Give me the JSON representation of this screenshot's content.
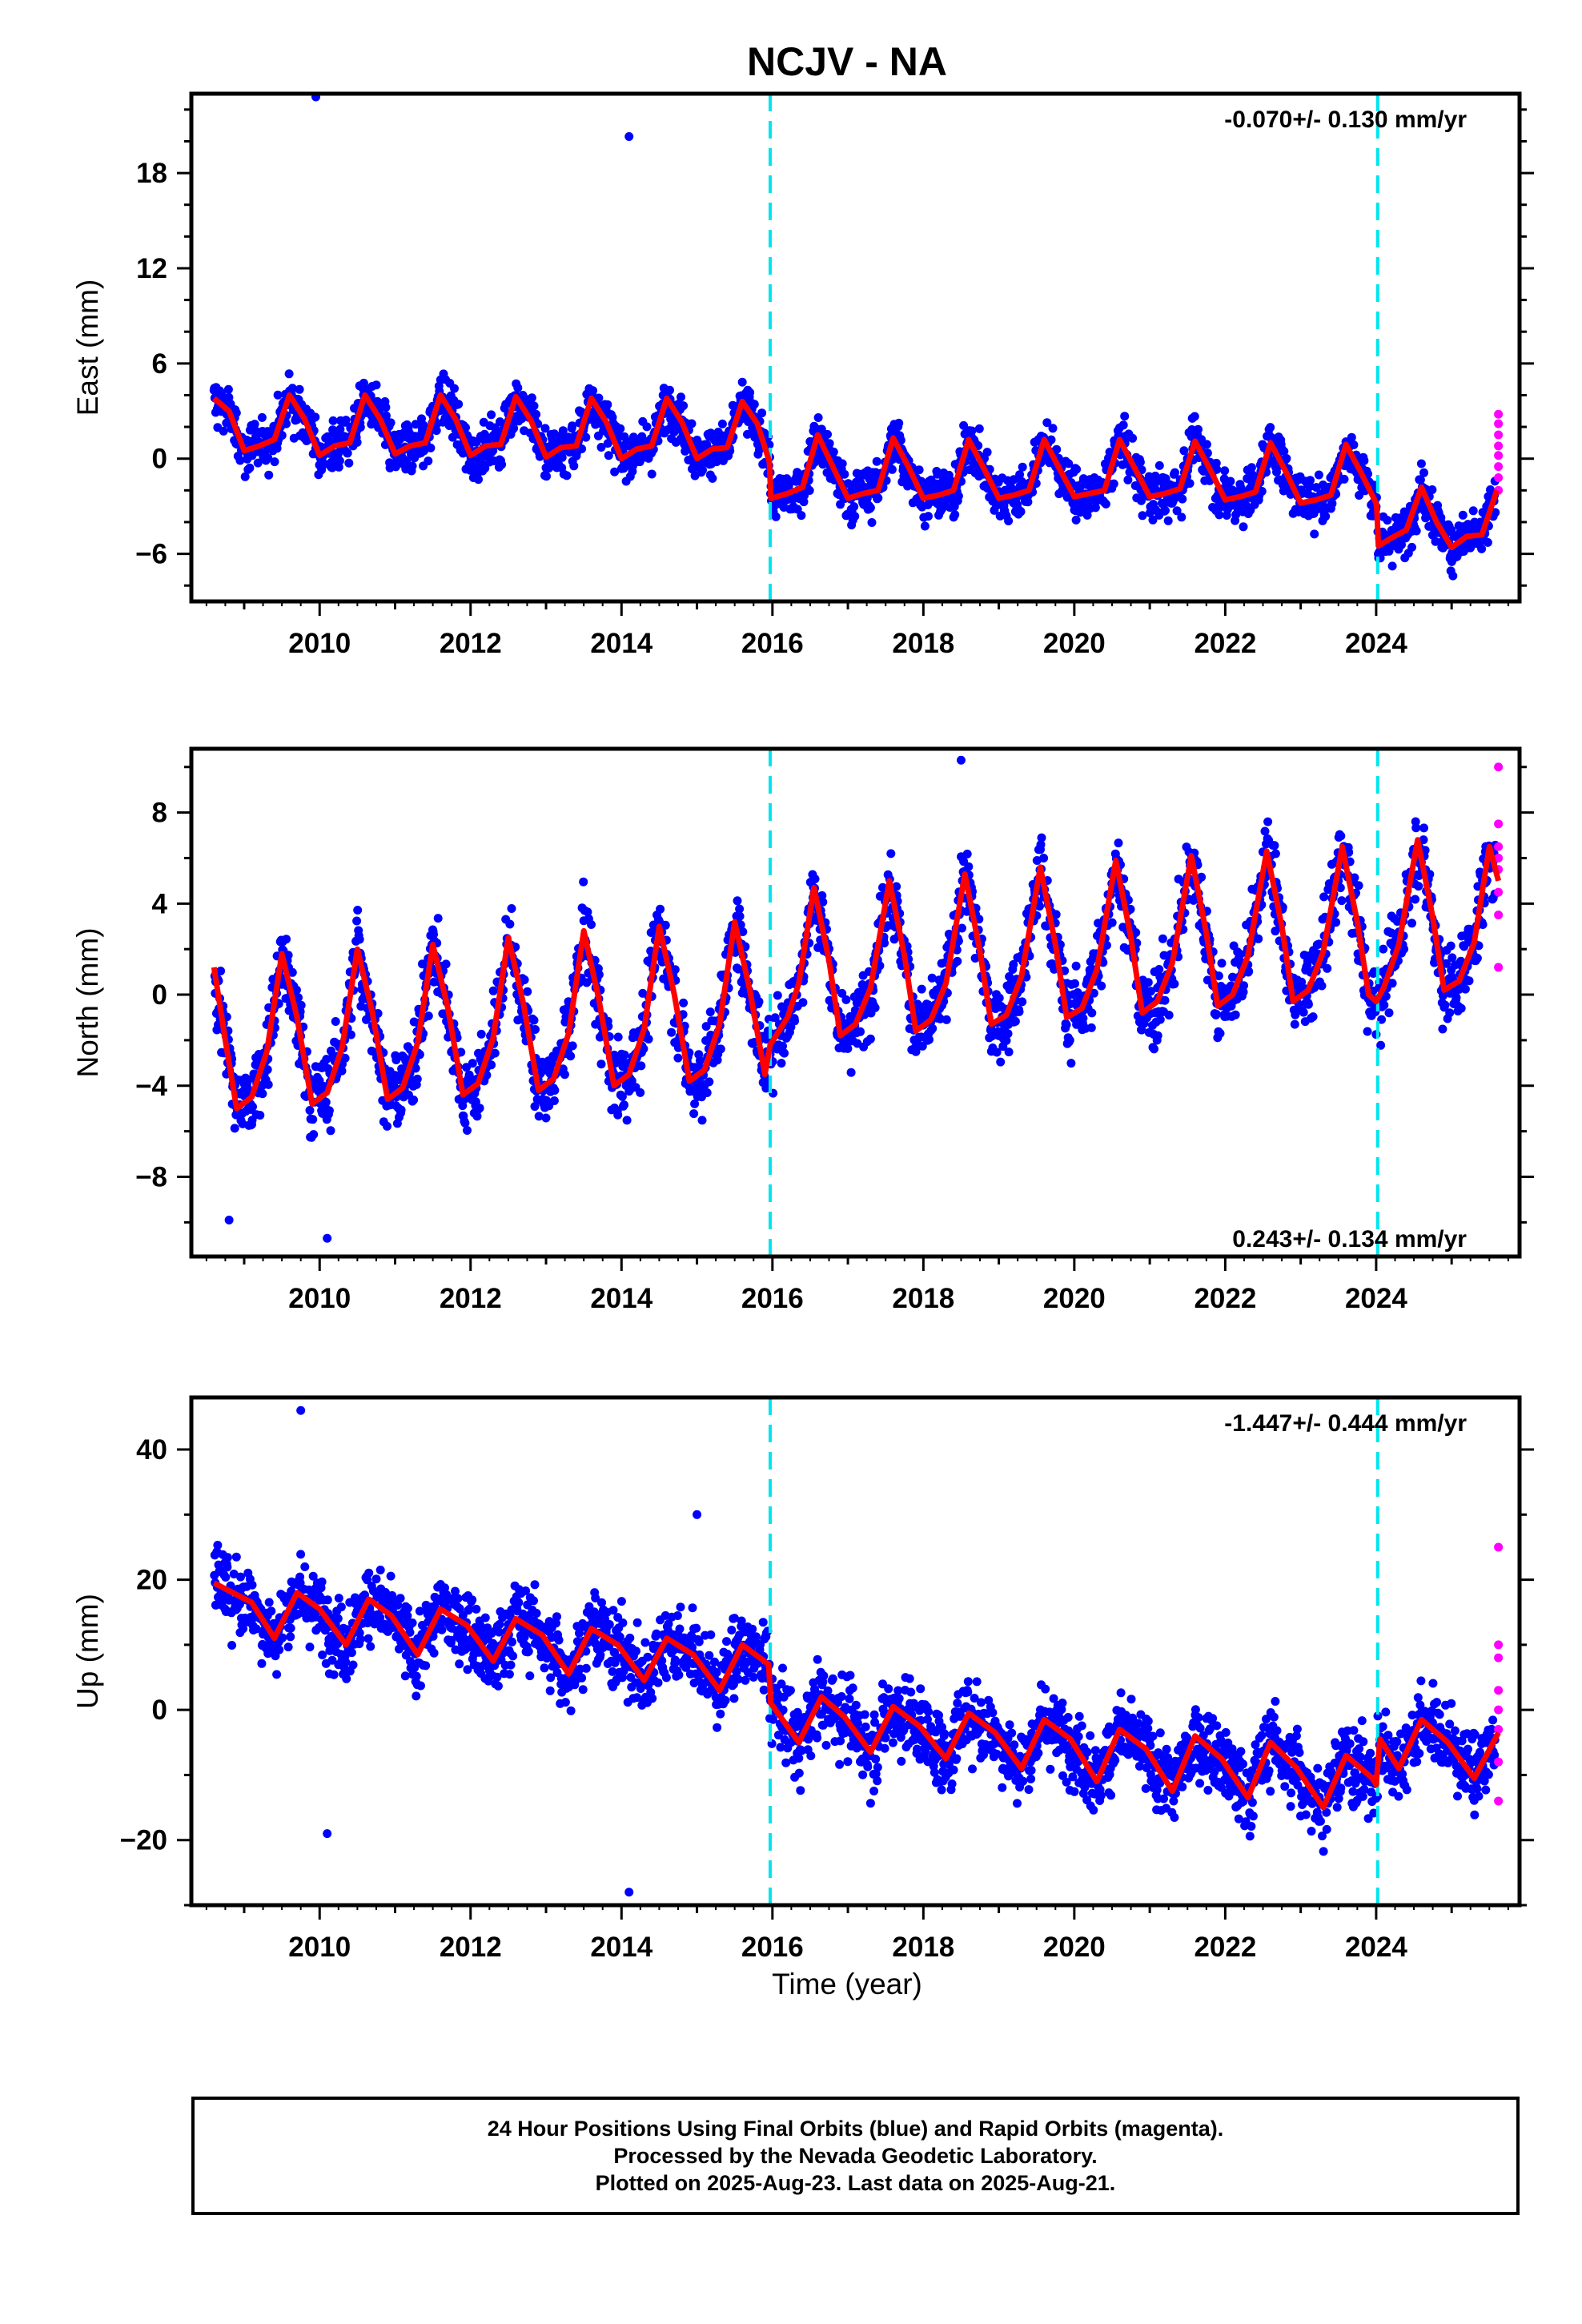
{
  "title": "NCJV - NA",
  "xlabel": "Time (year)",
  "footer": {
    "line1": "24 Hour Positions Using Final Orbits (blue) and Rapid Orbits (magenta).",
    "line2": "Processed by the Nevada Geodetic Laboratory.",
    "line3": "Plotted on 2025-Aug-23. Last data on 2025-Aug-21."
  },
  "colors": {
    "final_orbits": "#0000ff",
    "rapid_orbits": "#ff00ff",
    "model_fit": "#ff0000",
    "equipment_change": "#00e5ee"
  },
  "chart_data": [
    {
      "type": "scatter",
      "panel": "east",
      "ylabel": "East (mm)",
      "rate_label": "-0.070+/- 0.130 mm/yr",
      "xlim": [
        2008.3,
        2025.9
      ],
      "ylim": [
        -9,
        23
      ],
      "yticks": [
        -6,
        0,
        6,
        12,
        18
      ],
      "xticks": [
        2010,
        2012,
        2014,
        2016,
        2018,
        2020,
        2022,
        2024
      ],
      "discontinuities": [
        2015.97,
        2024.02
      ],
      "model": {
        "x": [
          2008.6,
          2008.8,
          2009.0,
          2009.2,
          2009.4,
          2009.6,
          2009.8,
          2010.0,
          2010.2,
          2010.4,
          2010.6,
          2010.8,
          2011.0,
          2011.2,
          2011.4,
          2011.6,
          2011.8,
          2012.0,
          2012.2,
          2012.4,
          2012.6,
          2012.8,
          2013.0,
          2013.2,
          2013.4,
          2013.6,
          2013.8,
          2014.0,
          2014.2,
          2014.4,
          2014.6,
          2014.8,
          2015.0,
          2015.2,
          2015.4,
          2015.6,
          2015.8,
          2015.96,
          2015.98,
          2016.2,
          2016.4,
          2016.6,
          2016.8,
          2017.0,
          2017.2,
          2017.4,
          2017.6,
          2017.8,
          2018.0,
          2018.2,
          2018.4,
          2018.6,
          2018.8,
          2019.0,
          2019.2,
          2019.4,
          2019.6,
          2019.8,
          2020.0,
          2020.2,
          2020.4,
          2020.6,
          2020.8,
          2021.0,
          2021.2,
          2021.4,
          2021.6,
          2021.8,
          2022.0,
          2022.2,
          2022.4,
          2022.6,
          2022.8,
          2023.0,
          2023.2,
          2023.4,
          2023.6,
          2023.8,
          2024.0,
          2024.01,
          2024.03,
          2024.2,
          2024.4,
          2024.6,
          2024.8,
          2025.0,
          2025.2,
          2025.4,
          2025.6
        ],
        "y": [
          3.8,
          3.0,
          0.5,
          0.8,
          1.2,
          4.0,
          2.5,
          0.2,
          0.8,
          1.0,
          4.0,
          2.5,
          0.3,
          0.8,
          1.0,
          4.0,
          2.5,
          0.2,
          0.8,
          0.9,
          3.9,
          2.4,
          0.1,
          0.7,
          0.8,
          3.8,
          2.3,
          0.0,
          0.6,
          0.8,
          3.8,
          2.3,
          0.0,
          0.6,
          0.7,
          3.6,
          2.2,
          -0.2,
          -2.5,
          -2.2,
          -1.8,
          1.5,
          -0.5,
          -2.5,
          -2.2,
          -2.0,
          1.3,
          -0.5,
          -2.5,
          -2.3,
          -2.0,
          1.2,
          -0.6,
          -2.5,
          -2.3,
          -2.0,
          1.2,
          -0.6,
          -2.4,
          -2.2,
          -2.0,
          1.2,
          -0.6,
          -2.4,
          -2.2,
          -1.9,
          1.1,
          -0.7,
          -2.6,
          -2.4,
          -2.1,
          1.0,
          -0.8,
          -2.8,
          -2.6,
          -2.3,
          0.9,
          -0.9,
          -2.8,
          -3.2,
          -5.5,
          -5.0,
          -4.5,
          -1.8,
          -4.0,
          -5.6,
          -4.9,
          -4.8,
          -2.0
        ]
      },
      "outliers": [
        [
          2009.95,
          22.8
        ],
        [
          2014.1,
          20.3
        ]
      ],
      "rapid": [
        [
          2025.62,
          2.8
        ],
        [
          2025.62,
          2.2
        ],
        [
          2025.62,
          1.5
        ],
        [
          2025.62,
          0.8
        ],
        [
          2025.62,
          0.2
        ],
        [
          2025.62,
          -0.5
        ],
        [
          2025.62,
          -1.2
        ],
        [
          2025.62,
          -2.0
        ]
      ]
    },
    {
      "type": "scatter",
      "panel": "north",
      "ylabel": "North (mm)",
      "rate_label": "0.243+/- 0.134 mm/yr",
      "xlim": [
        2008.3,
        2025.9
      ],
      "ylim": [
        -11.5,
        10.8
      ],
      "yticks": [
        -8,
        -4,
        0,
        4,
        8
      ],
      "xticks": [
        2010,
        2012,
        2014,
        2016,
        2018,
        2020,
        2022,
        2024
      ],
      "discontinuities": [
        2015.97,
        2024.02
      ],
      "model": {
        "x": [
          2008.6,
          2008.75,
          2008.9,
          2009.1,
          2009.3,
          2009.5,
          2009.7,
          2009.9,
          2010.1,
          2010.3,
          2010.5,
          2010.7,
          2010.9,
          2011.1,
          2011.3,
          2011.5,
          2011.7,
          2011.9,
          2012.1,
          2012.3,
          2012.5,
          2012.7,
          2012.9,
          2013.1,
          2013.3,
          2013.5,
          2013.7,
          2013.9,
          2014.1,
          2014.3,
          2014.5,
          2014.7,
          2014.9,
          2015.1,
          2015.3,
          2015.5,
          2015.7,
          2015.9,
          2015.97,
          2016.2,
          2016.35,
          2016.55,
          2016.75,
          2016.9,
          2017.1,
          2017.3,
          2017.55,
          2017.75,
          2017.9,
          2018.1,
          2018.3,
          2018.55,
          2018.75,
          2018.9,
          2019.1,
          2019.3,
          2019.55,
          2019.75,
          2019.9,
          2020.1,
          2020.3,
          2020.55,
          2020.75,
          2020.9,
          2021.1,
          2021.3,
          2021.55,
          2021.75,
          2021.9,
          2022.1,
          2022.3,
          2022.55,
          2022.75,
          2022.9,
          2023.1,
          2023.3,
          2023.55,
          2023.75,
          2023.9,
          2024.0,
          2024.1,
          2024.3,
          2024.55,
          2024.75,
          2024.9,
          2025.1,
          2025.3,
          2025.5,
          2025.62
        ],
        "y": [
          1.2,
          -2.0,
          -5.0,
          -4.5,
          -2.5,
          1.8,
          -1.0,
          -4.8,
          -4.3,
          -2.3,
          2.0,
          -0.8,
          -4.6,
          -4.1,
          -2.1,
          2.2,
          -0.6,
          -4.4,
          -3.9,
          -1.9,
          2.5,
          -0.4,
          -4.2,
          -3.7,
          -1.7,
          2.8,
          -0.2,
          -4.0,
          -3.5,
          -1.5,
          3.0,
          0.0,
          -3.8,
          -3.3,
          -1.3,
          3.2,
          0.2,
          -3.5,
          -2.2,
          -1.0,
          0.5,
          4.7,
          1.5,
          -1.8,
          -1.3,
          0.3,
          5.0,
          1.7,
          -1.6,
          -1.1,
          0.5,
          5.3,
          1.9,
          -1.3,
          -0.9,
          0.8,
          5.6,
          2.2,
          -1.0,
          -0.6,
          1.1,
          5.9,
          2.5,
          -0.8,
          -0.3,
          1.4,
          6.1,
          2.7,
          -0.5,
          0.0,
          1.7,
          6.3,
          3.0,
          -0.3,
          0.2,
          1.9,
          6.5,
          3.2,
          0.0,
          -0.3,
          0.3,
          2.2,
          6.8,
          3.4,
          0.2,
          0.6,
          2.3,
          6.5,
          5.0
        ]
      },
      "outliers": [
        [
          2018.5,
          10.3
        ],
        [
          2010.1,
          -10.7
        ],
        [
          2008.8,
          -9.9
        ]
      ],
      "rapid": [
        [
          2025.62,
          10.0
        ],
        [
          2025.62,
          7.5
        ],
        [
          2025.62,
          6.5
        ],
        [
          2025.62,
          6.0
        ],
        [
          2025.62,
          5.5
        ],
        [
          2025.62,
          4.5
        ],
        [
          2025.62,
          3.5
        ],
        [
          2025.62,
          1.2
        ]
      ]
    },
    {
      "type": "scatter",
      "panel": "up",
      "ylabel": "Up (mm)",
      "rate_label": "-1.447+/- 0.444 mm/yr",
      "xlim": [
        2008.3,
        2025.9
      ],
      "ylim": [
        -30,
        48
      ],
      "yticks": [
        -20,
        0,
        20,
        40
      ],
      "xticks": [
        2010,
        2012,
        2014,
        2016,
        2018,
        2020,
        2022,
        2024
      ],
      "discontinuities": [
        2015.97,
        2024.02
      ],
      "model": {
        "x": [
          2008.6,
          2008.85,
          2009.1,
          2009.4,
          2009.7,
          2010.0,
          2010.35,
          2010.65,
          2010.95,
          2011.3,
          2011.6,
          2011.95,
          2012.3,
          2012.6,
          2012.95,
          2013.3,
          2013.6,
          2013.95,
          2014.3,
          2014.6,
          2014.95,
          2015.3,
          2015.6,
          2015.95,
          2015.98,
          2016.35,
          2016.65,
          2016.95,
          2017.3,
          2017.6,
          2017.95,
          2018.3,
          2018.6,
          2018.95,
          2019.3,
          2019.6,
          2019.95,
          2020.3,
          2020.6,
          2020.95,
          2021.3,
          2021.6,
          2021.95,
          2022.3,
          2022.6,
          2022.95,
          2023.3,
          2023.6,
          2023.95,
          2024.0,
          2024.05,
          2024.3,
          2024.6,
          2024.95,
          2025.3,
          2025.62
        ],
        "y": [
          19.5,
          18.0,
          16.5,
          11.0,
          18.0,
          15.5,
          10.0,
          17.0,
          14.5,
          8.5,
          15.5,
          13.0,
          7.5,
          14.0,
          11.5,
          5.5,
          12.5,
          10.0,
          4.5,
          11.0,
          8.5,
          3.0,
          10.0,
          7.0,
          1.0,
          -5.0,
          2.0,
          -1.0,
          -6.5,
          0.5,
          -2.5,
          -7.5,
          -0.5,
          -3.5,
          -9.0,
          -1.5,
          -4.5,
          -11.0,
          -3.0,
          -6.0,
          -12.5,
          -4.0,
          -7.5,
          -13.5,
          -5.0,
          -9.0,
          -15.0,
          -7.0,
          -10.5,
          -11.5,
          -4.5,
          -9.0,
          -1.5,
          -5.0,
          -10.5,
          -3.5
        ]
      },
      "outliers": [
        [
          2009.75,
          46.0
        ],
        [
          2010.1,
          -19.0
        ],
        [
          2014.1,
          -28.0
        ],
        [
          2015.0,
          30.0
        ]
      ],
      "rapid": [
        [
          2025.62,
          25.0
        ],
        [
          2025.62,
          10.0
        ],
        [
          2025.62,
          8.0
        ],
        [
          2025.62,
          3.0
        ],
        [
          2025.62,
          0.0
        ],
        [
          2025.62,
          -3.0
        ],
        [
          2025.62,
          -8.0
        ],
        [
          2025.62,
          -14.0
        ]
      ]
    }
  ]
}
